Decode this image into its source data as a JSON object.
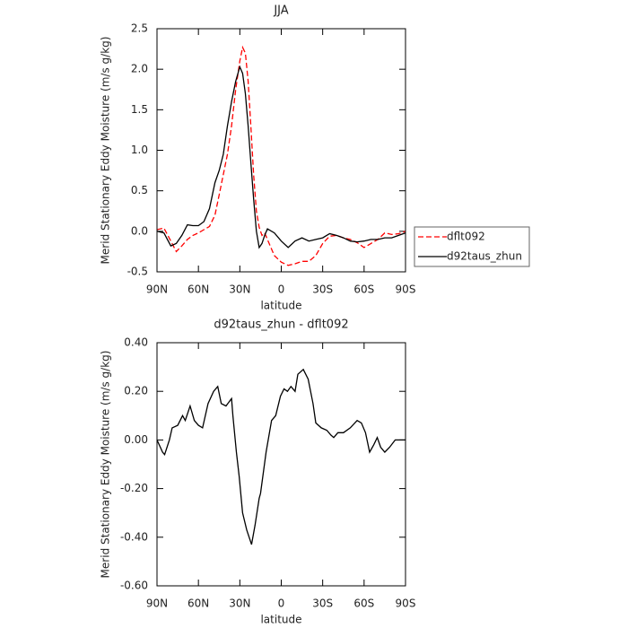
{
  "chart_data": [
    {
      "type": "line",
      "title": "JJA",
      "xlabel": "latitude",
      "ylabel": "Merid Stationary Eddy Moisture (m/s g/kg)",
      "x": [
        90,
        85,
        80,
        76,
        72,
        68,
        64,
        60,
        56,
        52,
        48,
        45,
        42,
        39,
        36,
        33,
        30,
        28,
        26,
        24,
        22,
        20,
        18,
        16,
        14,
        12,
        10,
        5,
        0,
        -5,
        -10,
        -15,
        -20,
        -25,
        -30,
        -35,
        -40,
        -45,
        -50,
        -55,
        -60,
        -65,
        -70,
        -75,
        -80,
        -85,
        -90
      ],
      "series": [
        {
          "name": "dflt092",
          "color": "#ff0000",
          "dashed": true,
          "values": [
            0.02,
            0.04,
            -0.12,
            -0.25,
            -0.18,
            -0.1,
            -0.05,
            -0.02,
            0.02,
            0.06,
            0.2,
            0.45,
            0.7,
            0.95,
            1.3,
            1.75,
            2.1,
            2.27,
            2.2,
            1.85,
            1.3,
            0.7,
            0.25,
            0.05,
            -0.05,
            -0.02,
            -0.1,
            -0.3,
            -0.38,
            -0.42,
            -0.4,
            -0.37,
            -0.37,
            -0.3,
            -0.15,
            -0.06,
            -0.05,
            -0.08,
            -0.1,
            -0.14,
            -0.2,
            -0.15,
            -0.1,
            -0.02,
            -0.04,
            -0.03,
            0.0
          ]
        },
        {
          "name": "d92taus_zhun",
          "color": "#000000",
          "dashed": false,
          "values": [
            0.0,
            -0.02,
            -0.18,
            -0.15,
            -0.05,
            0.08,
            0.07,
            0.07,
            0.12,
            0.28,
            0.6,
            0.75,
            0.95,
            1.3,
            1.6,
            1.85,
            2.03,
            1.95,
            1.7,
            1.3,
            0.85,
            0.4,
            0.0,
            -0.2,
            -0.15,
            -0.05,
            0.03,
            -0.02,
            -0.12,
            -0.2,
            -0.12,
            -0.08,
            -0.12,
            -0.1,
            -0.08,
            -0.03,
            -0.05,
            -0.08,
            -0.12,
            -0.13,
            -0.12,
            -0.1,
            -0.1,
            -0.08,
            -0.08,
            -0.05,
            -0.02
          ]
        }
      ],
      "xlim": [
        90,
        -90
      ],
      "xticks": [
        {
          "value": 90,
          "label": "90N"
        },
        {
          "value": 60,
          "label": "60N"
        },
        {
          "value": 30,
          "label": "30N"
        },
        0,
        {
          "value": -30,
          "label": "30S"
        },
        {
          "value": -60,
          "label": "60S"
        },
        {
          "value": -90,
          "label": "90S"
        }
      ],
      "ylim": [
        -0.5,
        2.5
      ],
      "yticks": [
        2.5,
        {
          "value": 2.0,
          "label": "2.0"
        },
        1.5,
        {
          "value": 1.0,
          "label": "1.0"
        },
        0.5,
        {
          "value": 0.0,
          "label": "0.0"
        },
        -0.5
      ],
      "legend": "right"
    },
    {
      "type": "line",
      "title": "d92taus_zhun - dflt092",
      "xlabel": "latitude",
      "ylabel": "Merid Stationary Eddy Moisture (m/s g/kg)",
      "x": [
        90,
        86,
        84.5,
        81,
        79,
        75,
        71.5,
        69.5,
        66,
        63,
        60,
        57,
        53,
        49,
        46,
        43.5,
        40,
        36,
        35,
        32.5,
        30.5,
        28,
        25,
        21.5,
        19,
        16,
        15,
        11,
        7,
        4,
        0.6,
        -2,
        -4.5,
        -7,
        -10,
        -12,
        -16,
        -19.5,
        -23,
        -25,
        -29,
        -33,
        -36,
        -38,
        -41,
        -45,
        -50,
        -55,
        -58,
        -61,
        -64,
        -67,
        -69.5,
        -72,
        -75,
        -78.5,
        -82.5,
        -86,
        -90
      ],
      "series": [
        {
          "color": "#000000",
          "dashed": false,
          "values": [
            0.0,
            -0.05,
            -0.06,
            0.0,
            0.05,
            0.06,
            0.1,
            0.08,
            0.14,
            0.08,
            0.06,
            0.05,
            0.15,
            0.2,
            0.22,
            0.15,
            0.14,
            0.17,
            0.1,
            -0.05,
            -0.15,
            -0.3,
            -0.37,
            -0.43,
            -0.35,
            -0.24,
            -0.22,
            -0.05,
            0.08,
            0.1,
            0.18,
            0.21,
            0.2,
            0.22,
            0.2,
            0.27,
            0.29,
            0.25,
            0.15,
            0.07,
            0.05,
            0.04,
            0.02,
            0.01,
            0.03,
            0.03,
            0.05,
            0.08,
            0.07,
            0.03,
            -0.05,
            -0.02,
            0.01,
            -0.03,
            -0.05,
            -0.03,
            0.0,
            0.0,
            0.0
          ]
        }
      ],
      "xlim": [
        90,
        -90
      ],
      "xticks": [
        {
          "value": 90,
          "label": "90N"
        },
        {
          "value": 60,
          "label": "60N"
        },
        {
          "value": 30,
          "label": "30N"
        },
        0,
        {
          "value": -30,
          "label": "30S"
        },
        {
          "value": -60,
          "label": "60S"
        },
        {
          "value": -90,
          "label": "90S"
        }
      ],
      "ylim": [
        -0.6,
        0.4
      ],
      "yticks": [
        {
          "value": 0.4,
          "label": "0.40"
        },
        {
          "value": 0.2,
          "label": "0.20"
        },
        {
          "value": 0.0,
          "label": "0.00"
        },
        {
          "value": -0.2,
          "label": "-0.20"
        },
        {
          "value": -0.4,
          "label": "-0.40"
        },
        {
          "value": -0.6,
          "label": "-0.60"
        }
      ]
    }
  ]
}
